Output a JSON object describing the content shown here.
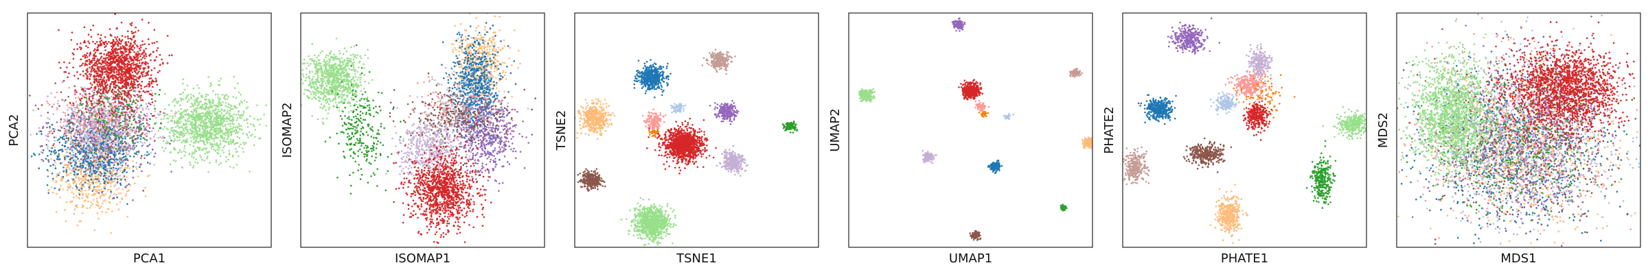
{
  "figure": {
    "panel_count": 6
  },
  "chart_data": [
    {
      "type": "scatter",
      "xlabel": "PCA1",
      "ylabel": "PCA2",
      "xlim": [
        -10,
        10
      ],
      "ylim": [
        -10,
        10
      ],
      "ticks": "none",
      "grid": false,
      "legend": "none",
      "clusters": [
        {
          "color": "#ffbb78",
          "cx": -4.5,
          "cy": -3.6,
          "sx": 1.5,
          "sy": 1.8,
          "n": 650
        },
        {
          "color": "#1f77b4",
          "cx": -4.4,
          "cy": -1.8,
          "sx": 1.9,
          "sy": 1.5,
          "n": 650
        },
        {
          "color": "#98df8a",
          "cx": 4.7,
          "cy": 0.5,
          "sx": 1.7,
          "sy": 1.4,
          "n": 1100
        },
        {
          "color": "#c5b0d5",
          "cx": -4.0,
          "cy": 0.5,
          "sx": 2.0,
          "sy": 1.5,
          "n": 400
        },
        {
          "color": "#8c564b",
          "cx": -3.8,
          "cy": 0.3,
          "sx": 2.0,
          "sy": 1.6,
          "n": 300
        },
        {
          "color": "#9467bd",
          "cx": -3.4,
          "cy": 0.0,
          "sx": 2.0,
          "sy": 1.7,
          "n": 300
        },
        {
          "color": "#ff9896",
          "cx": -4.0,
          "cy": 0.9,
          "sx": 2.0,
          "sy": 1.4,
          "n": 300
        },
        {
          "color": "#2ca02c",
          "cx": -2.4,
          "cy": 1.0,
          "sx": 1.6,
          "sy": 1.5,
          "n": 150
        },
        {
          "color": "#aec7e8",
          "cx": -4.2,
          "cy": -0.8,
          "sx": 1.8,
          "sy": 1.6,
          "n": 200
        },
        {
          "color": "#d62728",
          "cx": -2.6,
          "cy": 5.3,
          "sx": 1.5,
          "sy": 1.5,
          "n": 1200
        }
      ]
    },
    {
      "type": "scatter",
      "xlabel": "ISOMAP1",
      "ylabel": "ISOMAP2",
      "xlim": [
        -10,
        10
      ],
      "ylim": [
        -10,
        10
      ],
      "ticks": "none",
      "grid": false,
      "legend": "none",
      "clusters": [
        {
          "color": "#98df8a",
          "cx": -7.3,
          "cy": 4.3,
          "sx": 1.2,
          "sy": 1.2,
          "n": 800
        },
        {
          "color": "#2ca02c",
          "cx": -5.0,
          "cy": -0.3,
          "sx": 1.0,
          "sy": 2.0,
          "n": 250
        },
        {
          "color": "#ffbb78",
          "cx": 4.7,
          "cy": 5.8,
          "sx": 1.0,
          "sy": 1.4,
          "n": 500
        },
        {
          "color": "#1f77b4",
          "cx": 4.4,
          "cy": 3.7,
          "sx": 1.0,
          "sy": 2.0,
          "n": 700
        },
        {
          "color": "#9467bd",
          "cx": 5.3,
          "cy": -0.5,
          "sx": 1.2,
          "sy": 1.6,
          "n": 500
        },
        {
          "color": "#8c564b",
          "cx": 2.8,
          "cy": 1.0,
          "sx": 2.0,
          "sy": 1.0,
          "n": 350
        },
        {
          "color": "#c5b0d5",
          "cx": 0.5,
          "cy": -1.6,
          "sx": 1.2,
          "sy": 1.1,
          "n": 450
        },
        {
          "color": "#ff9896",
          "cx": 3.0,
          "cy": 2.0,
          "sx": 1.8,
          "sy": 1.4,
          "n": 150
        },
        {
          "color": "#aec7e8",
          "cx": 3.5,
          "cy": 1.5,
          "sx": 1.8,
          "sy": 1.6,
          "n": 150
        },
        {
          "color": "#d62728",
          "cx": 1.7,
          "cy": -5.1,
          "sx": 1.3,
          "sy": 1.6,
          "n": 1100
        }
      ]
    },
    {
      "type": "scatter",
      "xlabel": "TSNE1",
      "ylabel": "TSNE2",
      "xlim": [
        -10,
        10
      ],
      "ylim": [
        -10,
        10
      ],
      "ticks": "none",
      "grid": false,
      "legend": "none",
      "clusters": [
        {
          "color": "#1f77b4",
          "cx": -3.7,
          "cy": 4.5,
          "sx": 0.55,
          "sy": 0.5,
          "n": 450
        },
        {
          "color": "#c49c94",
          "cx": 1.9,
          "cy": 5.9,
          "sx": 0.45,
          "sy": 0.35,
          "n": 250
        },
        {
          "color": "#ffbb78",
          "cx": -8.4,
          "cy": 1.0,
          "sx": 0.55,
          "sy": 0.6,
          "n": 450
        },
        {
          "color": "#ff9896",
          "cx": -3.5,
          "cy": 0.8,
          "sx": 0.35,
          "sy": 0.35,
          "n": 150
        },
        {
          "color": "#aec7e8",
          "cx": -1.5,
          "cy": 1.9,
          "sx": 0.25,
          "sy": 0.2,
          "n": 60
        },
        {
          "color": "#ff7f0e",
          "cx": -3.4,
          "cy": -0.2,
          "sx": 0.2,
          "sy": 0.15,
          "n": 40
        },
        {
          "color": "#9467bd",
          "cx": 2.5,
          "cy": 1.6,
          "sx": 0.38,
          "sy": 0.35,
          "n": 250
        },
        {
          "color": "#2ca02c",
          "cx": 7.7,
          "cy": 0.3,
          "sx": 0.25,
          "sy": 0.2,
          "n": 120
        },
        {
          "color": "#d62728",
          "cx": -1.1,
          "cy": -1.3,
          "sx": 0.8,
          "sy": 0.7,
          "n": 1100
        },
        {
          "color": "#c5b0d5",
          "cx": 3.0,
          "cy": -2.7,
          "sx": 0.45,
          "sy": 0.4,
          "n": 350
        },
        {
          "color": "#8c564b",
          "cx": -8.6,
          "cy": -4.3,
          "sx": 0.4,
          "sy": 0.35,
          "n": 300
        },
        {
          "color": "#98df8a",
          "cx": -3.7,
          "cy": -7.9,
          "sx": 0.7,
          "sy": 0.65,
          "n": 900
        }
      ]
    },
    {
      "type": "scatter",
      "xlabel": "UMAP1",
      "ylabel": "UMAP2",
      "xlim": [
        -10,
        10
      ],
      "ylim": [
        -10,
        10
      ],
      "ticks": "none",
      "grid": false,
      "legend": "none",
      "clusters": [
        {
          "color": "#9467bd",
          "cx": -1.0,
          "cy": 9.0,
          "sx": 0.2,
          "sy": 0.2,
          "n": 120
        },
        {
          "color": "#c49c94",
          "cx": 8.6,
          "cy": 4.9,
          "sx": 0.2,
          "sy": 0.15,
          "n": 100
        },
        {
          "color": "#98df8a",
          "cx": -8.6,
          "cy": 3.0,
          "sx": 0.3,
          "sy": 0.25,
          "n": 220
        },
        {
          "color": "#d62728",
          "cx": 0.1,
          "cy": 3.4,
          "sx": 0.35,
          "sy": 0.3,
          "n": 400
        },
        {
          "color": "#ff9896",
          "cx": 0.8,
          "cy": 2.0,
          "sx": 0.25,
          "sy": 0.2,
          "n": 60
        },
        {
          "color": "#ff7f0e",
          "cx": 1.1,
          "cy": 1.4,
          "sx": 0.15,
          "sy": 0.1,
          "n": 30
        },
        {
          "color": "#aec7e8",
          "cx": 3.0,
          "cy": 1.1,
          "sx": 0.15,
          "sy": 0.1,
          "n": 30
        },
        {
          "color": "#ffbb78",
          "cx": 9.7,
          "cy": -1.1,
          "sx": 0.22,
          "sy": 0.2,
          "n": 150
        },
        {
          "color": "#c5b0d5",
          "cx": -3.5,
          "cy": -2.3,
          "sx": 0.2,
          "sy": 0.2,
          "n": 120
        },
        {
          "color": "#1f77b4",
          "cx": 2.0,
          "cy": -3.1,
          "sx": 0.22,
          "sy": 0.2,
          "n": 160
        },
        {
          "color": "#2ca02c",
          "cx": 7.6,
          "cy": -6.6,
          "sx": 0.12,
          "sy": 0.12,
          "n": 60
        },
        {
          "color": "#8c564b",
          "cx": 0.4,
          "cy": -9.0,
          "sx": 0.2,
          "sy": 0.15,
          "n": 100
        }
      ]
    },
    {
      "type": "scatter",
      "xlabel": "PHATE1",
      "ylabel": "PHATE2",
      "xlim": [
        -10,
        10
      ],
      "ylim": [
        -10,
        10
      ],
      "ticks": "none",
      "grid": false,
      "legend": "none",
      "clusters": [
        {
          "color": "#9467bd",
          "cx": -4.6,
          "cy": 7.8,
          "sx": 0.6,
          "sy": 0.55,
          "n": 350
        },
        {
          "color": "#c5b0d5",
          "cx": 1.2,
          "cy": 5.7,
          "sx": 0.45,
          "sy": 0.6,
          "n": 250
        },
        {
          "color": "#ff9896",
          "cx": 0.3,
          "cy": 3.9,
          "sx": 0.6,
          "sy": 0.5,
          "n": 300
        },
        {
          "color": "#ff7f0e",
          "cx": 1.5,
          "cy": 2.8,
          "sx": 1.0,
          "sy": 0.8,
          "n": 80
        },
        {
          "color": "#aec7e8",
          "cx": -1.6,
          "cy": 2.3,
          "sx": 0.4,
          "sy": 0.4,
          "n": 180
        },
        {
          "color": "#1f77b4",
          "cx": -7.0,
          "cy": 1.8,
          "sx": 0.55,
          "sy": 0.45,
          "n": 350
        },
        {
          "color": "#d62728",
          "cx": 1.0,
          "cy": 1.1,
          "sx": 0.45,
          "sy": 0.55,
          "n": 300
        },
        {
          "color": "#98df8a",
          "cx": 8.9,
          "cy": 0.5,
          "sx": 0.6,
          "sy": 0.5,
          "n": 300
        },
        {
          "color": "#8c564b",
          "cx": -3.2,
          "cy": -2.1,
          "sx": 0.7,
          "sy": 0.45,
          "n": 320
        },
        {
          "color": "#c49c94",
          "cx": -9.0,
          "cy": -3.2,
          "sx": 0.45,
          "sy": 0.7,
          "n": 280
        },
        {
          "color": "#2ca02c",
          "cx": 6.4,
          "cy": -4.3,
          "sx": 0.4,
          "sy": 0.9,
          "n": 280
        },
        {
          "color": "#ffbb78",
          "cx": -1.3,
          "cy": -7.2,
          "sx": 0.5,
          "sy": 0.8,
          "n": 350
        }
      ]
    },
    {
      "type": "scatter",
      "xlabel": "MDS1",
      "ylabel": "MDS2",
      "xlim": [
        -10,
        10
      ],
      "ylim": [
        -10,
        10
      ],
      "ticks": "none",
      "grid": false,
      "legend": "none",
      "clusters": [
        {
          "color": "#1f77b4",
          "cx": 0.0,
          "cy": -1.5,
          "sx": 3.6,
          "sy": 3.2,
          "n": 800
        },
        {
          "color": "#ffbb78",
          "cx": 0.5,
          "cy": -2.0,
          "sx": 3.6,
          "sy": 3.0,
          "n": 700
        },
        {
          "color": "#c5b0d5",
          "cx": 0.0,
          "cy": -1.0,
          "sx": 3.7,
          "sy": 3.4,
          "n": 600
        },
        {
          "color": "#8c564b",
          "cx": 0.5,
          "cy": -1.0,
          "sx": 3.7,
          "sy": 3.3,
          "n": 600
        },
        {
          "color": "#9467bd",
          "cx": 0.0,
          "cy": -0.5,
          "sx": 3.7,
          "sy": 3.4,
          "n": 500
        },
        {
          "color": "#ff9896",
          "cx": 0.0,
          "cy": 0.0,
          "sx": 3.8,
          "sy": 3.5,
          "n": 500
        },
        {
          "color": "#2ca02c",
          "cx": -0.5,
          "cy": -1.0,
          "sx": 3.6,
          "sy": 3.2,
          "n": 400
        },
        {
          "color": "#aec7e8",
          "cx": 0.0,
          "cy": -0.5,
          "sx": 3.6,
          "sy": 3.3,
          "n": 400
        },
        {
          "color": "#98df8a",
          "cx": -5.4,
          "cy": 1.2,
          "sx": 1.6,
          "sy": 2.3,
          "n": 1500
        },
        {
          "color": "#d62728",
          "cx": 3.8,
          "cy": 3.5,
          "sx": 2.3,
          "sy": 1.8,
          "n": 1700
        }
      ]
    }
  ]
}
